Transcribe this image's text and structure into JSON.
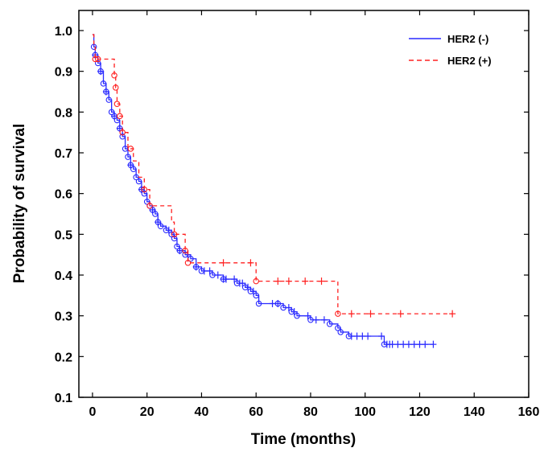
{
  "chart_data": {
    "type": "line",
    "title": "",
    "xlabel": "Time (months)",
    "ylabel": "Probability of survival",
    "xlim": [
      -5,
      160
    ],
    "ylim": [
      0.1,
      1.0
    ],
    "xticks": [
      0,
      20,
      40,
      60,
      80,
      100,
      120,
      140,
      160
    ],
    "yticks": [
      0.1,
      0.2,
      0.3,
      0.4,
      0.5,
      0.6,
      0.7,
      0.8,
      0.9,
      1.0
    ],
    "grid": false,
    "legend_position": "top-right",
    "series": [
      {
        "name": "HER2 (-)",
        "color": "#2a2aff",
        "style": "solid",
        "steps": [
          [
            0,
            0.99
          ],
          [
            0.5,
            0.96
          ],
          [
            1,
            0.94
          ],
          [
            2,
            0.92
          ],
          [
            3,
            0.9
          ],
          [
            4,
            0.87
          ],
          [
            5,
            0.85
          ],
          [
            6,
            0.83
          ],
          [
            7,
            0.8
          ],
          [
            8,
            0.79
          ],
          [
            9,
            0.78
          ],
          [
            10,
            0.76
          ],
          [
            11,
            0.74
          ],
          [
            12,
            0.71
          ],
          [
            13,
            0.69
          ],
          [
            14,
            0.67
          ],
          [
            15,
            0.66
          ],
          [
            16,
            0.64
          ],
          [
            17,
            0.63
          ],
          [
            18,
            0.61
          ],
          [
            19,
            0.6
          ],
          [
            20,
            0.58
          ],
          [
            21,
            0.57
          ],
          [
            22,
            0.56
          ],
          [
            23,
            0.55
          ],
          [
            24,
            0.53
          ],
          [
            25,
            0.52
          ],
          [
            27,
            0.51
          ],
          [
            29,
            0.5
          ],
          [
            30,
            0.49
          ],
          [
            31,
            0.47
          ],
          [
            32,
            0.46
          ],
          [
            34,
            0.45
          ],
          [
            36,
            0.44
          ],
          [
            38,
            0.42
          ],
          [
            40,
            0.41
          ],
          [
            44,
            0.4
          ],
          [
            48,
            0.39
          ],
          [
            53,
            0.38
          ],
          [
            56,
            0.37
          ],
          [
            58,
            0.36
          ],
          [
            60,
            0.35
          ],
          [
            61,
            0.33
          ],
          [
            68,
            0.33
          ],
          [
            70,
            0.32
          ],
          [
            73,
            0.31
          ],
          [
            75,
            0.3
          ],
          [
            80,
            0.29
          ],
          [
            87,
            0.28
          ],
          [
            90,
            0.27
          ],
          [
            91,
            0.26
          ],
          [
            94,
            0.25
          ],
          [
            107,
            0.23
          ],
          [
            125,
            0.23
          ]
        ],
        "censor_x": [
          1,
          3,
          5,
          8,
          10,
          14,
          18,
          22,
          24,
          28,
          32,
          35,
          38,
          41,
          43,
          46,
          48,
          49,
          52,
          54,
          55,
          57,
          59,
          66,
          68,
          72,
          74,
          79,
          82,
          85,
          95,
          97,
          99,
          101,
          106,
          108,
          109,
          110,
          112,
          114,
          116,
          118,
          120,
          122,
          125
        ]
      },
      {
        "name": "HER2 (+)",
        "color": "#ff2020",
        "style": "dashed",
        "steps": [
          [
            0,
            0.99
          ],
          [
            0.5,
            0.96
          ],
          [
            1,
            0.93
          ],
          [
            8,
            0.89
          ],
          [
            8.5,
            0.86
          ],
          [
            9,
            0.82
          ],
          [
            10,
            0.79
          ],
          [
            11,
            0.75
          ],
          [
            13,
            0.71
          ],
          [
            15,
            0.68
          ],
          [
            17,
            0.64
          ],
          [
            19,
            0.61
          ],
          [
            21,
            0.57
          ],
          [
            29,
            0.53
          ],
          [
            30,
            0.5
          ],
          [
            34,
            0.46
          ],
          [
            35,
            0.43
          ],
          [
            60,
            0.385
          ],
          [
            90,
            0.305
          ],
          [
            132,
            0.305
          ]
        ],
        "circle_x": [
          1,
          2,
          8,
          8.5,
          9,
          10,
          11,
          14,
          19,
          21,
          30,
          34,
          35,
          60,
          90
        ],
        "censor_x": [
          48,
          58,
          68,
          72,
          78,
          84,
          95,
          102,
          113,
          132
        ]
      }
    ]
  }
}
